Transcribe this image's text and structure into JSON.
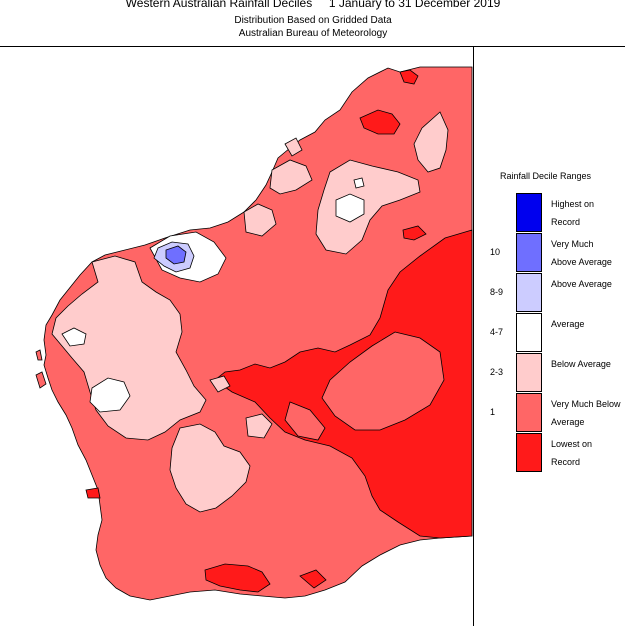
{
  "header": {
    "title": "Western Australian Rainfall Deciles     1 January to 31 December 2019",
    "subtitle": "Distribution Based on Gridded Data",
    "source": "Australian Bureau of Meteorology"
  },
  "legend": {
    "title": "Rainfall Decile Ranges",
    "categories": [
      {
        "label": "Highest on Record",
        "range": "",
        "color": "#0000ee"
      },
      {
        "label": "Very Much Above Average",
        "range": "10",
        "color": "#6f6fff"
      },
      {
        "label": "Above Average",
        "range": "8-9",
        "color": "#ccccff"
      },
      {
        "label": "Average",
        "range": "4-7",
        "color": "#ffffff"
      },
      {
        "label": "Below Average",
        "range": "2-3",
        "color": "#ffcccc"
      },
      {
        "label": "Very Much Below Average",
        "range": "1",
        "color": "#ff6666"
      },
      {
        "label": "Lowest on Record",
        "range": "",
        "color": "#ff1a1a"
      }
    ]
  },
  "colors": {
    "lowest": "#ff1a1a",
    "very_much_below": "#ff6666",
    "below": "#ffcccc",
    "average": "#ffffff",
    "above": "#ccccff",
    "very_much_above": "#6f6fff",
    "outline": "#000000"
  }
}
